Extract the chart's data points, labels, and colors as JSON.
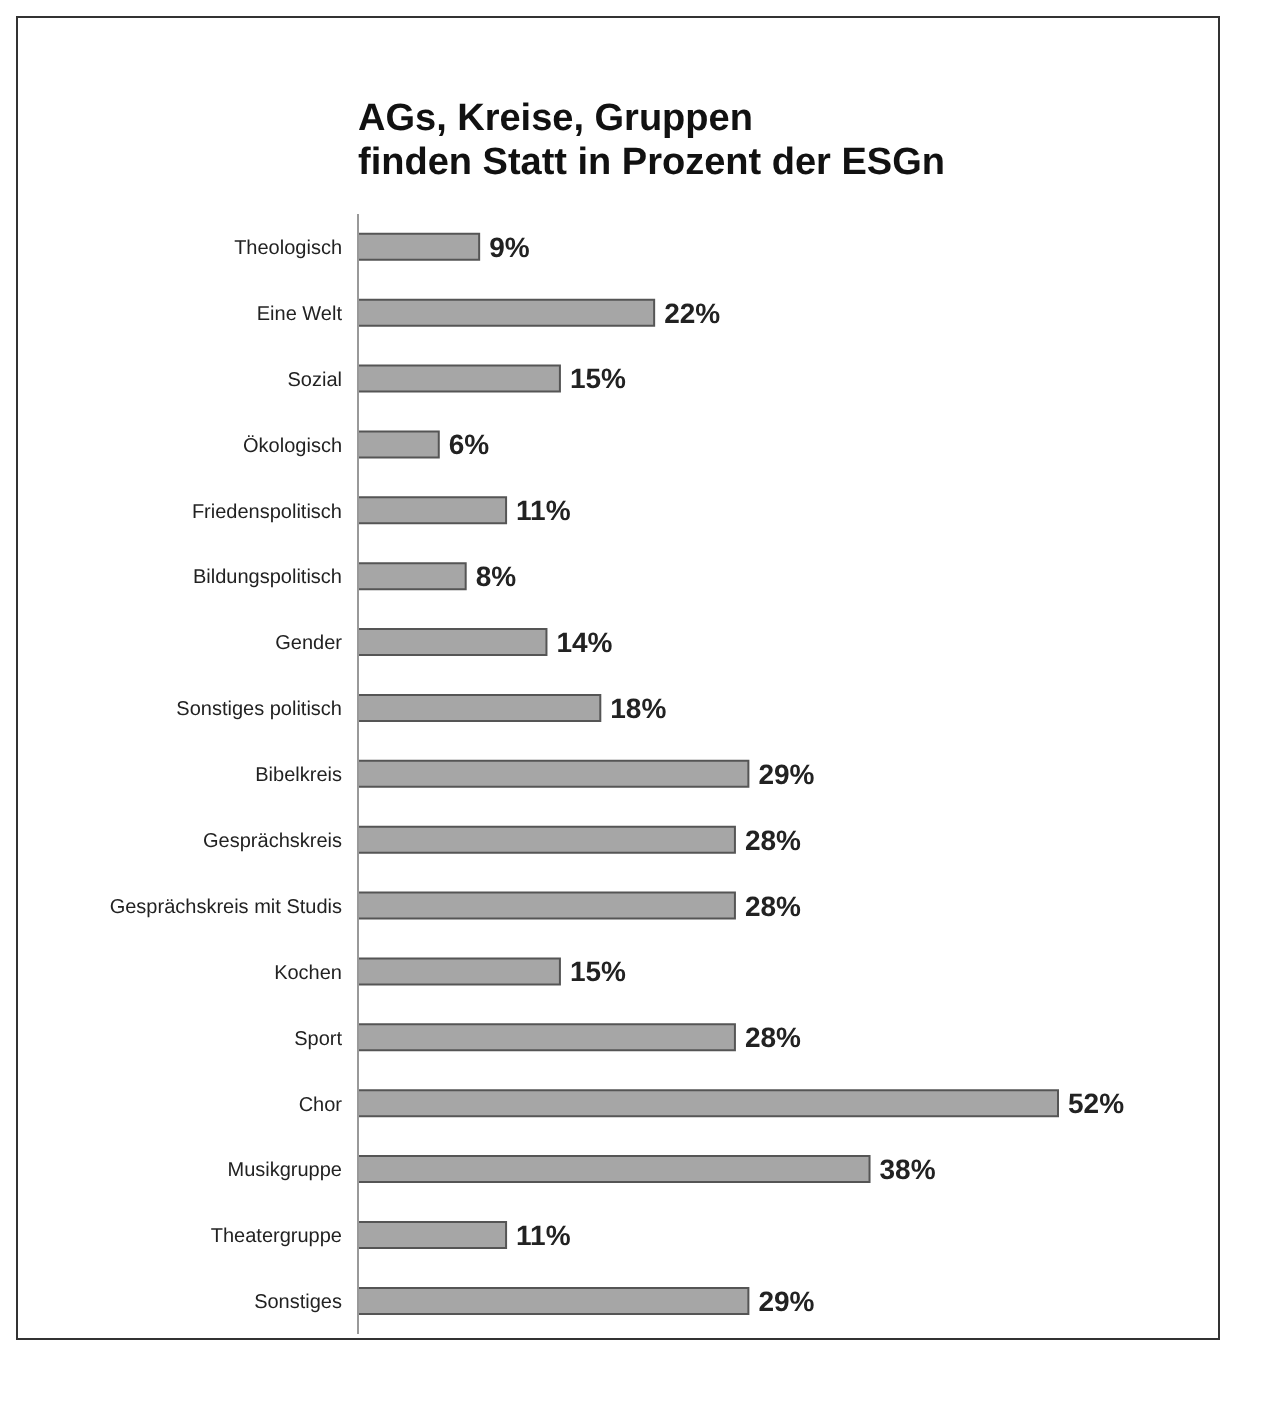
{
  "chart_data": {
    "type": "bar",
    "orientation": "horizontal",
    "title": "AGs, Kreise, Gruppen\nfinden Statt in Prozent der ESGn",
    "categories": [
      "Theologisch",
      "Eine Welt",
      "Sozial",
      "Ökologisch",
      "Friedenspolitisch",
      "Bildungspolitisch",
      "Gender",
      "Sonstiges politisch",
      "Bibelkreis",
      "Gesprächskreis",
      "Gesprächskreis mit Studis",
      "Kochen",
      "Sport",
      "Chor",
      "Musikgruppe",
      "Theatergruppe",
      "Sonstiges"
    ],
    "values": [
      9,
      22,
      15,
      6,
      11,
      8,
      14,
      18,
      29,
      28,
      28,
      15,
      28,
      52,
      38,
      11,
      29
    ],
    "value_labels": [
      "9%",
      "22%",
      "15%",
      "6%",
      "11%",
      "8%",
      "14%",
      "18%",
      "29%",
      "28%",
      "28%",
      "15%",
      "28%",
      "52%",
      "38%",
      "11%",
      "29%"
    ],
    "color": "#a6a6a6"
  }
}
